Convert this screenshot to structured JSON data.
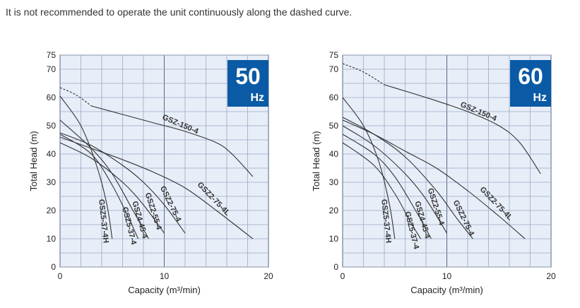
{
  "note": "It is not recommended to operate the unit continuously along the dashed curve.",
  "colors": {
    "badge": "#0a5aa5",
    "plot_bg": "#e8eef8",
    "grid": "#9aa9c6",
    "curve": "#333333"
  },
  "chart_data": [
    {
      "type": "line",
      "badge": {
        "value": "50",
        "unit": "Hz"
      },
      "xlabel": "Capacity (m³/min)",
      "ylabel": "Total Head (m)",
      "xlim": [
        0,
        20
      ],
      "ylim": [
        0,
        75
      ],
      "x_ticks": [
        "0",
        "10",
        "20"
      ],
      "y_ticks": [
        "0",
        "10",
        "20",
        "30",
        "40",
        "50",
        "60",
        "70",
        "75"
      ],
      "series": [
        {
          "name": "GSZ-150-4",
          "points": [
            [
              3,
              57
            ],
            [
              6,
              54
            ],
            [
              9,
              51
            ],
            [
              12,
              48
            ],
            [
              15,
              44
            ],
            [
              16.5,
              40
            ],
            [
              18.5,
              32
            ]
          ],
          "dashed_points": [
            [
              0,
              63.5
            ],
            [
              1.5,
              61
            ],
            [
              3,
              57
            ]
          ]
        },
        {
          "name": "GSZ2-75-4L",
          "points": [
            [
              0,
              46
            ],
            [
              3,
              42
            ],
            [
              6,
              38
            ],
            [
              9,
              33.5
            ],
            [
              12,
              28
            ],
            [
              15,
              20
            ],
            [
              18.5,
              10
            ]
          ]
        },
        {
          "name": "GSZ2-75-4",
          "points": [
            [
              0,
              47.5
            ],
            [
              3,
              43
            ],
            [
              6,
              36
            ],
            [
              8,
              30
            ],
            [
              10,
              22
            ],
            [
              12,
              12
            ]
          ]
        },
        {
          "name": "GSZ2-55-4",
          "points": [
            [
              0,
              44
            ],
            [
              3,
              38.5
            ],
            [
              6,
              30
            ],
            [
              8,
              22
            ],
            [
              10,
              12
            ]
          ]
        },
        {
          "name": "GSZ4-45-4",
          "points": [
            [
              0,
              52
            ],
            [
              3,
              42
            ],
            [
              5,
              33
            ],
            [
              7,
              20
            ],
            [
              8.5,
              10
            ]
          ]
        },
        {
          "name": "GSZ5-37-4",
          "points": [
            [
              0,
              47
            ],
            [
              3,
              40
            ],
            [
              5,
              29
            ],
            [
              6.5,
              18
            ],
            [
              7.5,
              10
            ]
          ]
        },
        {
          "name": "GSZ5-37-4H",
          "points": [
            [
              0,
              60.5
            ],
            [
              2,
              50
            ],
            [
              3.5,
              36
            ],
            [
              4.5,
              22
            ],
            [
              5,
              10
            ]
          ]
        }
      ]
    },
    {
      "type": "line",
      "badge": {
        "value": "60",
        "unit": "Hz"
      },
      "xlabel": "Capacity (m³/min)",
      "ylabel": "Total Head (m)",
      "xlim": [
        0,
        20
      ],
      "ylim": [
        0,
        75
      ],
      "x_ticks": [
        "0",
        "10",
        "20"
      ],
      "y_ticks": [
        "0",
        "10",
        "20",
        "30",
        "40",
        "50",
        "60",
        "70",
        "75"
      ],
      "series": [
        {
          "name": "GSZ-150-4",
          "points": [
            [
              4,
              64.5
            ],
            [
              8,
              60
            ],
            [
              12,
              55
            ],
            [
              15,
              50
            ],
            [
              17,
              44
            ],
            [
              19,
              33
            ]
          ],
          "dashed_points": [
            [
              0,
              72
            ],
            [
              2,
              69
            ],
            [
              4,
              64.5
            ]
          ]
        },
        {
          "name": "GSZ2-75-4L",
          "points": [
            [
              0,
              52
            ],
            [
              3,
              47
            ],
            [
              6,
              41
            ],
            [
              9,
              35
            ],
            [
              12,
              27
            ],
            [
              15,
              18
            ],
            [
              17.5,
              10
            ]
          ]
        },
        {
          "name": "GSZ2-75-4",
          "points": [
            [
              0,
              53
            ],
            [
              3,
              47
            ],
            [
              6,
              39
            ],
            [
              9,
              27
            ],
            [
              11,
              17
            ],
            [
              12.5,
              10
            ]
          ]
        },
        {
          "name": "GSZ2-55-4",
          "points": [
            [
              0,
              50
            ],
            [
              3,
              43
            ],
            [
              6,
              33
            ],
            [
              8,
              24
            ],
            [
              10,
              12
            ]
          ]
        },
        {
          "name": "GSZ4-45-4",
          "points": [
            [
              0,
              47
            ],
            [
              3,
              40
            ],
            [
              5,
              32
            ],
            [
              7,
              20
            ],
            [
              8.5,
              10
            ]
          ]
        },
        {
          "name": "GSZ5-37-4",
          "points": [
            [
              0,
              44
            ],
            [
              3,
              36
            ],
            [
              5,
              26
            ],
            [
              6.5,
              16
            ],
            [
              7.5,
              10
            ]
          ]
        },
        {
          "name": "GSZ5-37-4H",
          "points": [
            [
              0,
              60
            ],
            [
              2,
              50
            ],
            [
              3.5,
              37
            ],
            [
              4.5,
              22
            ],
            [
              5,
              10
            ]
          ]
        }
      ]
    }
  ]
}
